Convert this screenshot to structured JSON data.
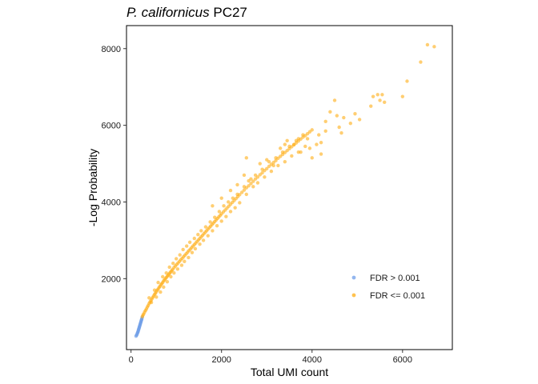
{
  "chart_data": {
    "type": "scatter",
    "title": {
      "italic": "P. californicus",
      "rest": " PC27"
    },
    "xlabel": "Total UMI count",
    "ylabel": "-Log Probability",
    "xlim": [
      -100,
      7100
    ],
    "ylim": [
      150,
      8600
    ],
    "xticks": [
      0,
      2000,
      4000,
      6000
    ],
    "yticks": [
      2000,
      4000,
      6000,
      8000
    ],
    "grid": false,
    "legend_position": "right, inside plot",
    "series": [
      {
        "name": "FDR > 0.001",
        "color": "#6f9ee8",
        "points": [
          [
            120,
            520
          ],
          [
            135,
            560
          ],
          [
            150,
            600
          ],
          [
            160,
            640
          ],
          [
            170,
            680
          ],
          [
            180,
            720
          ],
          [
            190,
            760
          ],
          [
            200,
            800
          ],
          [
            210,
            840
          ],
          [
            220,
            880
          ],
          [
            230,
            920
          ],
          [
            240,
            960
          ],
          [
            130,
            540
          ],
          [
            145,
            590
          ],
          [
            155,
            620
          ],
          [
            165,
            665
          ],
          [
            175,
            700
          ],
          [
            185,
            740
          ],
          [
            195,
            780
          ],
          [
            205,
            820
          ],
          [
            215,
            860
          ],
          [
            225,
            900
          ],
          [
            235,
            940
          ],
          [
            110,
            500
          ],
          [
            250,
            1000
          ]
        ]
      },
      {
        "name": "FDR <= 0.001",
        "color": "#ffad14",
        "points": [
          [
            250,
            1010
          ],
          [
            265,
            1050
          ],
          [
            280,
            1080
          ],
          [
            300,
            1130
          ],
          [
            320,
            1170
          ],
          [
            340,
            1210
          ],
          [
            360,
            1260
          ],
          [
            380,
            1300
          ],
          [
            400,
            1350
          ],
          [
            420,
            1390
          ],
          [
            440,
            1430
          ],
          [
            460,
            1470
          ],
          [
            480,
            1510
          ],
          [
            500,
            1550
          ],
          [
            520,
            1590
          ],
          [
            540,
            1620
          ],
          [
            560,
            1660
          ],
          [
            580,
            1700
          ],
          [
            600,
            1730
          ],
          [
            620,
            1770
          ],
          [
            640,
            1800
          ],
          [
            660,
            1840
          ],
          [
            680,
            1870
          ],
          [
            700,
            1900
          ],
          [
            720,
            1940
          ],
          [
            740,
            1970
          ],
          [
            760,
            2000
          ],
          [
            780,
            2030
          ],
          [
            800,
            2060
          ],
          [
            820,
            2090
          ],
          [
            840,
            2120
          ],
          [
            860,
            2150
          ],
          [
            880,
            2180
          ],
          [
            900,
            2210
          ],
          [
            920,
            2240
          ],
          [
            950,
            2290
          ],
          [
            980,
            2330
          ],
          [
            1010,
            2370
          ],
          [
            1040,
            2410
          ],
          [
            1070,
            2450
          ],
          [
            1100,
            2490
          ],
          [
            1130,
            2530
          ],
          [
            1160,
            2570
          ],
          [
            1190,
            2610
          ],
          [
            1220,
            2650
          ],
          [
            1250,
            2690
          ],
          [
            1280,
            2730
          ],
          [
            1310,
            2770
          ],
          [
            1340,
            2810
          ],
          [
            1370,
            2850
          ],
          [
            1400,
            2890
          ],
          [
            1430,
            2930
          ],
          [
            1460,
            2970
          ],
          [
            1490,
            3010
          ],
          [
            1520,
            3050
          ],
          [
            1550,
            3090
          ],
          [
            1580,
            3130
          ],
          [
            1610,
            3170
          ],
          [
            1640,
            3210
          ],
          [
            1670,
            3250
          ],
          [
            1700,
            3290
          ],
          [
            1730,
            3330
          ],
          [
            1760,
            3370
          ],
          [
            1790,
            3410
          ],
          [
            1820,
            3450
          ],
          [
            1850,
            3490
          ],
          [
            1880,
            3530
          ],
          [
            1910,
            3570
          ],
          [
            1940,
            3610
          ],
          [
            1970,
            3650
          ],
          [
            2000,
            3690
          ],
          [
            2040,
            3740
          ],
          [
            2080,
            3790
          ],
          [
            2120,
            3840
          ],
          [
            2160,
            3890
          ],
          [
            2200,
            3940
          ],
          [
            2240,
            3990
          ],
          [
            2280,
            4040
          ],
          [
            2320,
            4090
          ],
          [
            2360,
            4140
          ],
          [
            2400,
            4190
          ],
          [
            2450,
            4250
          ],
          [
            2500,
            4310
          ],
          [
            2550,
            4370
          ],
          [
            2600,
            4420
          ],
          [
            2650,
            4480
          ],
          [
            2700,
            4540
          ],
          [
            2750,
            4600
          ],
          [
            2800,
            4650
          ],
          [
            2850,
            4710
          ],
          [
            2900,
            4760
          ],
          [
            2950,
            4820
          ],
          [
            3000,
            4870
          ],
          [
            3050,
            4930
          ],
          [
            3100,
            4980
          ],
          [
            3150,
            5030
          ],
          [
            3200,
            5080
          ],
          [
            3250,
            5140
          ],
          [
            3300,
            5190
          ],
          [
            3350,
            5240
          ],
          [
            3400,
            5290
          ],
          [
            3450,
            5340
          ],
          [
            3500,
            5390
          ],
          [
            3550,
            5440
          ],
          [
            3600,
            5490
          ],
          [
            3650,
            5540
          ],
          [
            3700,
            5590
          ],
          [
            3750,
            5640
          ],
          [
            3800,
            5690
          ],
          [
            3850,
            5730
          ],
          [
            3900,
            5780
          ],
          [
            3950,
            5830
          ],
          [
            4000,
            5880
          ],
          [
            400,
            1500
          ],
          [
            450,
            1380
          ],
          [
            520,
            1700
          ],
          [
            560,
            1520
          ],
          [
            600,
            1900
          ],
          [
            650,
            1650
          ],
          [
            700,
            2050
          ],
          [
            720,
            1780
          ],
          [
            780,
            2150
          ],
          [
            800,
            1920
          ],
          [
            850,
            2300
          ],
          [
            880,
            2050
          ],
          [
            930,
            2400
          ],
          [
            950,
            2150
          ],
          [
            1000,
            2520
          ],
          [
            1030,
            2250
          ],
          [
            1080,
            2620
          ],
          [
            1120,
            2350
          ],
          [
            1150,
            2760
          ],
          [
            1180,
            2450
          ],
          [
            1230,
            2850
          ],
          [
            1270,
            2550
          ],
          [
            1300,
            2950
          ],
          [
            1350,
            2680
          ],
          [
            1400,
            3050
          ],
          [
            1420,
            2780
          ],
          [
            1480,
            3150
          ],
          [
            1520,
            2900
          ],
          [
            1550,
            3250
          ],
          [
            1600,
            3000
          ],
          [
            1650,
            3350
          ],
          [
            1700,
            3120
          ],
          [
            1750,
            3480
          ],
          [
            1800,
            3250
          ],
          [
            1850,
            3600
          ],
          [
            1900,
            3380
          ],
          [
            1950,
            3750
          ],
          [
            2000,
            3500
          ],
          [
            2050,
            3900
          ],
          [
            2100,
            3620
          ],
          [
            2150,
            4000
          ],
          [
            2200,
            3750
          ],
          [
            2250,
            4100
          ],
          [
            2300,
            3850
          ],
          [
            2350,
            4200
          ],
          [
            2400,
            3980
          ],
          [
            2500,
            4400
          ],
          [
            2550,
            4200
          ],
          [
            2600,
            4550
          ],
          [
            2700,
            4400
          ],
          [
            2750,
            4700
          ],
          [
            2800,
            4500
          ],
          [
            2900,
            4850
          ],
          [
            2950,
            4650
          ],
          [
            3050,
            5050
          ],
          [
            3100,
            4800
          ],
          [
            3200,
            5150
          ],
          [
            3250,
            4950
          ],
          [
            3350,
            5300
          ],
          [
            3400,
            5050
          ],
          [
            3500,
            5450
          ],
          [
            3550,
            5200
          ],
          [
            3650,
            5600
          ],
          [
            3700,
            5300
          ],
          [
            3800,
            5750
          ],
          [
            3850,
            5450
          ],
          [
            1800,
            3900
          ],
          [
            2000,
            4100
          ],
          [
            2200,
            4300
          ],
          [
            2350,
            4450
          ],
          [
            2500,
            4700
          ],
          [
            2550,
            5150
          ],
          [
            2650,
            4600
          ],
          [
            2850,
            5000
          ],
          [
            3000,
            5100
          ],
          [
            3150,
            4950
          ],
          [
            3300,
            5400
          ],
          [
            3400,
            5500
          ],
          [
            3450,
            5600
          ],
          [
            3600,
            5500
          ],
          [
            3700,
            5650
          ],
          [
            3750,
            5300
          ],
          [
            3900,
            5650
          ],
          [
            3950,
            5400
          ],
          [
            4000,
            5150
          ],
          [
            4100,
            5500
          ],
          [
            4150,
            5750
          ],
          [
            4200,
            5250
          ],
          [
            4300,
            5850
          ],
          [
            4400,
            6350
          ],
          [
            4500,
            6650
          ],
          [
            4550,
            6250
          ],
          [
            4600,
            5950
          ],
          [
            4700,
            6200
          ],
          [
            4850,
            6050
          ],
          [
            4950,
            6300
          ],
          [
            5050,
            6150
          ],
          [
            5300,
            6500
          ],
          [
            5350,
            6750
          ],
          [
            5450,
            6800
          ],
          [
            5500,
            6650
          ],
          [
            5550,
            6800
          ],
          [
            5600,
            6600
          ],
          [
            6000,
            6750
          ],
          [
            6100,
            7150
          ],
          [
            6400,
            7650
          ],
          [
            6550,
            8100
          ],
          [
            6700,
            8050
          ],
          [
            4650,
            5800
          ],
          [
            4300,
            6100
          ],
          [
            4200,
            5550
          ]
        ]
      }
    ]
  }
}
